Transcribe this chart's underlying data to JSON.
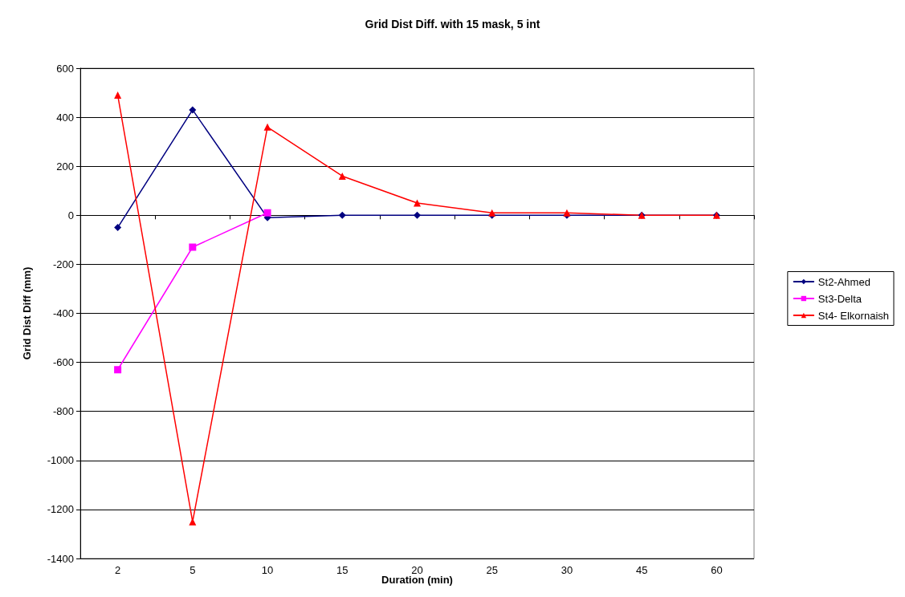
{
  "chart_data": {
    "type": "line",
    "title": "Grid Dist Diff. with 15 mask, 5 int",
    "xlabel": "Duration (min)",
    "ylabel": "Grid Dist Diff (mm)",
    "categories": [
      "2",
      "5",
      "10",
      "15",
      "20",
      "25",
      "30",
      "45",
      "60"
    ],
    "series": [
      {
        "name": "St2-Ahmed",
        "color": "#000080",
        "marker": "diamond",
        "values": [
          -50,
          430,
          -10,
          0,
          0,
          0,
          0,
          0,
          0
        ]
      },
      {
        "name": "St3-Delta",
        "color": "#ff00ff",
        "marker": "square",
        "values": [
          -630,
          -130,
          10,
          null,
          null,
          null,
          null,
          null,
          null
        ]
      },
      {
        "name": "St4- Elkornaish",
        "color": "#ff0000",
        "marker": "triangle",
        "values": [
          490,
          -1250,
          360,
          160,
          50,
          10,
          10,
          0,
          0
        ]
      }
    ],
    "ylim": [
      -1400,
      600
    ],
    "yticks": [
      -1400,
      -1200,
      -1000,
      -800,
      -600,
      -400,
      -200,
      0,
      200,
      400,
      600
    ],
    "grid": "y",
    "legend": "right",
    "line_style": "solid"
  }
}
